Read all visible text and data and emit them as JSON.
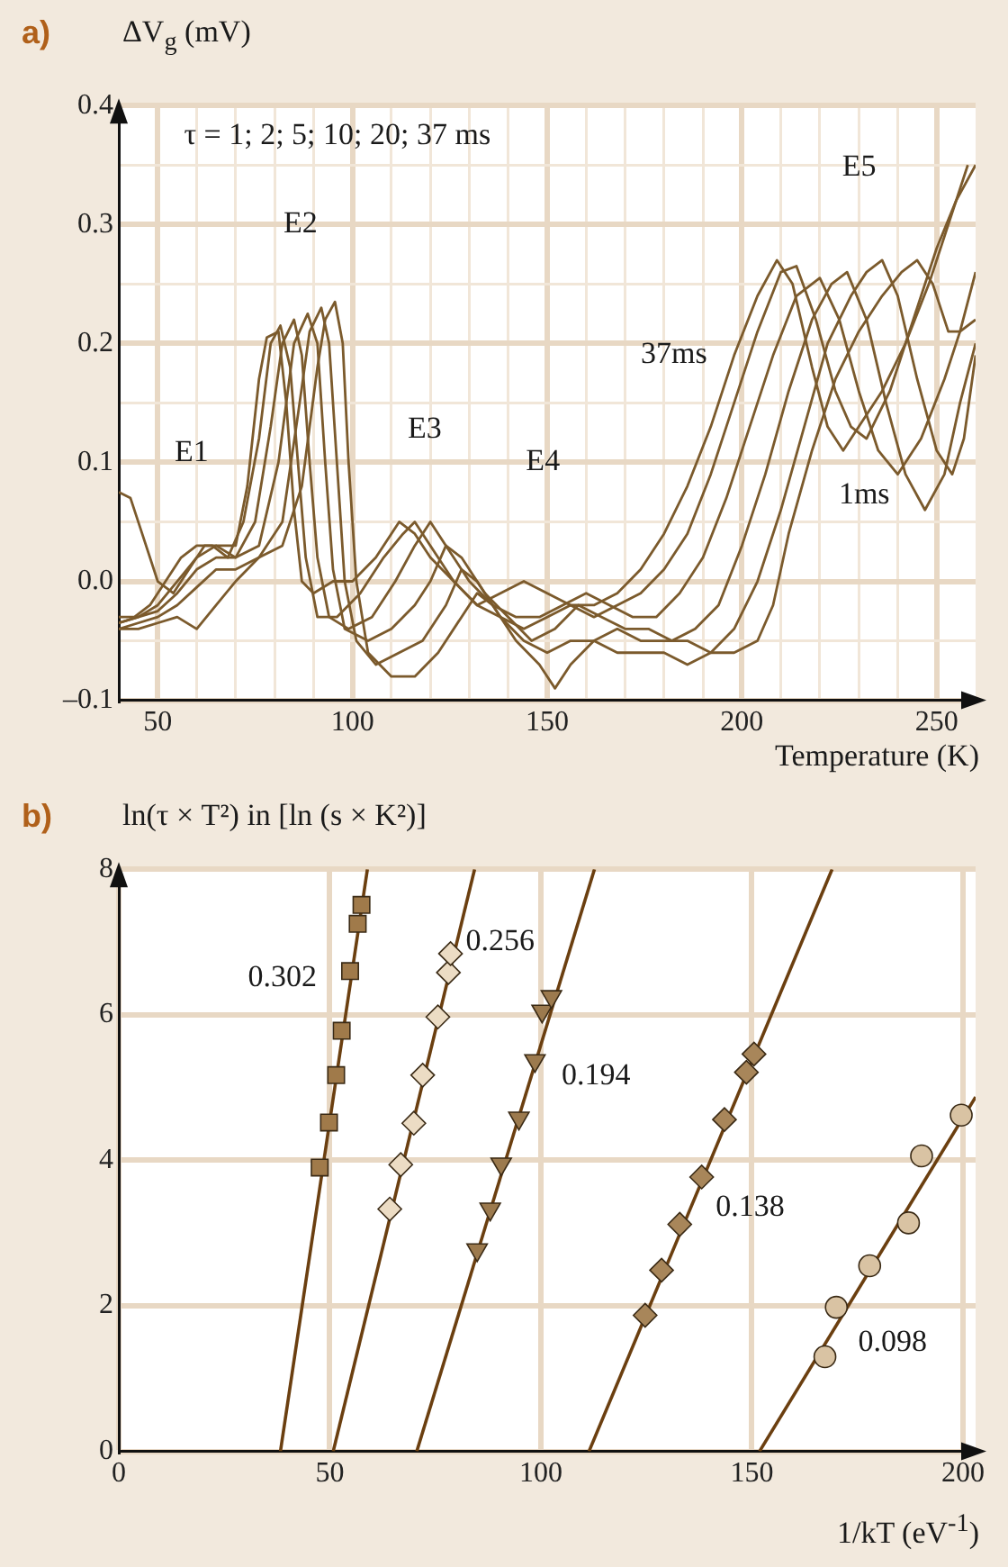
{
  "chart_data": [
    {
      "type": "line",
      "title": "a)",
      "ylabel": "ΔV$_{g}$ (mV)",
      "xlabel": "Temperature (K)",
      "marker": "none",
      "grid": true,
      "xlim": [
        40,
        260
      ],
      "ylim": [
        -0.1,
        0.4
      ],
      "xticks": [
        50,
        {
          "value": 60,
          "label": null
        },
        {
          "value": 70,
          "label": null
        },
        {
          "value": 80,
          "label": null
        },
        {
          "value": 90,
          "label": null
        },
        100,
        {
          "value": 110,
          "label": null
        },
        {
          "value": 120,
          "label": null
        },
        {
          "value": 130,
          "label": null
        },
        {
          "value": 140,
          "label": null
        },
        150,
        {
          "value": 160,
          "label": null
        },
        {
          "value": 170,
          "label": null
        },
        {
          "value": 180,
          "label": null
        },
        {
          "value": 190,
          "label": null
        },
        200,
        {
          "value": 210,
          "label": null
        },
        {
          "value": 220,
          "label": null
        },
        {
          "value": 230,
          "label": null
        },
        {
          "value": 240,
          "label": null
        },
        250
      ],
      "yticks": [
        {
          "value": -0.1,
          "label": "–0.1"
        },
        {
          "value": -0.05,
          "label": null
        },
        {
          "value": 0,
          "label": "0.0"
        },
        {
          "value": 0.05,
          "label": null
        },
        0.1,
        {
          "value": 0.15,
          "label": null
        },
        0.2,
        {
          "value": 0.25,
          "label": null
        },
        0.3,
        {
          "value": 0.35,
          "label": null
        },
        0.4
      ],
      "annotations": [
        "τ = 1; 2; 5; 10; 20; 37 ms",
        "E1",
        "E2",
        "E3",
        "E4",
        "E5",
        "37ms",
        "1ms"
      ],
      "series": [
        {
          "color": "#7b5a2c",
          "x": [
            40,
            43,
            46,
            50,
            54,
            58,
            62,
            66,
            70,
            73,
            76,
            78,
            81,
            83,
            85,
            87,
            90,
            95,
            100,
            106,
            112,
            116,
            120,
            126,
            132,
            138,
            144,
            150,
            156,
            162,
            168,
            174,
            180,
            186,
            192,
            198,
            204,
            209,
            213,
            218,
            222,
            226,
            230,
            236,
            242,
            248,
            253,
            258
          ],
          "values": [
            0.075,
            0.07,
            0.04,
            0.0,
            -0.01,
            0.01,
            0.03,
            0.03,
            0.03,
            0.08,
            0.17,
            0.205,
            0.21,
            0.15,
            0.06,
            0.0,
            -0.01,
            0.0,
            0.0,
            0.02,
            0.05,
            0.04,
            0.02,
            0.0,
            -0.02,
            -0.03,
            -0.04,
            -0.03,
            -0.02,
            -0.02,
            -0.01,
            0.01,
            0.04,
            0.08,
            0.13,
            0.19,
            0.24,
            0.27,
            0.25,
            0.18,
            0.13,
            0.11,
            0.13,
            0.16,
            0.2,
            0.25,
            0.3,
            0.35
          ]
        },
        {
          "color": "#7b5a2c",
          "x": [
            40,
            44,
            48,
            52,
            56,
            60,
            64,
            68,
            72,
            76,
            79,
            81.5,
            84,
            86,
            88,
            91,
            96,
            102,
            108,
            113,
            116,
            120,
            126,
            132,
            138,
            144,
            150,
            156,
            162,
            168,
            174,
            180,
            186,
            192,
            198,
            204,
            210,
            214,
            219,
            224,
            228,
            232,
            238,
            244,
            250,
            255,
            260
          ],
          "values": [
            -0.03,
            -0.03,
            -0.02,
            0.0,
            0.02,
            0.03,
            0.03,
            0.02,
            0.05,
            0.12,
            0.2,
            0.215,
            0.18,
            0.1,
            0.02,
            -0.03,
            -0.03,
            -0.01,
            0.02,
            0.04,
            0.05,
            0.03,
            0.0,
            -0.02,
            -0.01,
            0.0,
            -0.01,
            -0.02,
            -0.03,
            -0.02,
            -0.01,
            0.01,
            0.04,
            0.09,
            0.15,
            0.21,
            0.26,
            0.265,
            0.22,
            0.16,
            0.13,
            0.12,
            0.16,
            0.22,
            0.28,
            0.32,
            0.35
          ]
        },
        {
          "color": "#7b5a2c",
          "x": [
            40,
            45,
            50,
            55,
            60,
            65,
            70,
            75,
            79,
            82,
            85,
            87,
            89,
            91,
            94,
            99,
            105,
            111,
            116,
            120,
            124,
            130,
            136,
            142,
            148,
            154,
            160,
            166,
            172,
            178,
            184,
            190,
            196,
            202,
            208,
            214,
            220,
            225,
            230,
            235,
            240,
            246,
            252,
            256,
            260
          ],
          "values": [
            -0.035,
            -0.03,
            -0.02,
            0.0,
            0.02,
            0.03,
            0.02,
            0.05,
            0.13,
            0.2,
            0.22,
            0.19,
            0.1,
            0.02,
            -0.03,
            -0.04,
            -0.03,
            0.0,
            0.03,
            0.05,
            0.03,
            0.0,
            -0.02,
            -0.03,
            -0.03,
            -0.02,
            -0.01,
            -0.02,
            -0.03,
            -0.03,
            -0.01,
            0.02,
            0.07,
            0.13,
            0.19,
            0.24,
            0.255,
            0.22,
            0.16,
            0.11,
            0.09,
            0.12,
            0.17,
            0.21,
            0.22
          ]
        },
        {
          "color": "#7b5a2c",
          "x": [
            40,
            45,
            50,
            55,
            60,
            65,
            70,
            76,
            81,
            85,
            88.5,
            91,
            93,
            95,
            98,
            104,
            110,
            116,
            120,
            124,
            128,
            134,
            140,
            146,
            152,
            158,
            164,
            170,
            176,
            182,
            188,
            194,
            200,
            206,
            212,
            218,
            223,
            227,
            232,
            237,
            242,
            247,
            252,
            256,
            260
          ],
          "values": [
            -0.035,
            -0.03,
            -0.025,
            -0.01,
            0.01,
            0.02,
            0.02,
            0.03,
            0.1,
            0.2,
            0.225,
            0.2,
            0.1,
            0.01,
            -0.04,
            -0.05,
            -0.04,
            -0.02,
            0.0,
            0.03,
            0.02,
            -0.01,
            -0.03,
            -0.05,
            -0.04,
            -0.02,
            -0.03,
            -0.04,
            -0.04,
            -0.05,
            -0.04,
            -0.02,
            0.03,
            0.09,
            0.16,
            0.22,
            0.25,
            0.26,
            0.22,
            0.15,
            0.09,
            0.06,
            0.09,
            0.15,
            0.2
          ]
        },
        {
          "color": "#7b5a2c",
          "x": [
            40,
            45,
            50,
            55,
            60,
            65,
            70,
            76,
            82,
            86,
            89,
            92,
            94,
            96,
            98,
            101,
            106,
            112,
            118,
            124,
            128,
            132,
            138,
            144,
            150,
            156,
            162,
            168,
            174,
            180,
            186,
            192,
            198,
            204,
            210,
            216,
            222,
            228,
            232,
            236,
            240,
            245,
            250,
            254,
            257,
            260
          ],
          "values": [
            -0.04,
            -0.035,
            -0.03,
            -0.02,
            -0.005,
            0.01,
            0.01,
            0.02,
            0.05,
            0.14,
            0.21,
            0.23,
            0.2,
            0.1,
            0.0,
            -0.05,
            -0.07,
            -0.06,
            -0.05,
            -0.02,
            0.01,
            0.0,
            -0.03,
            -0.05,
            -0.06,
            -0.05,
            -0.05,
            -0.06,
            -0.06,
            -0.06,
            -0.07,
            -0.06,
            -0.04,
            0.0,
            0.06,
            0.13,
            0.2,
            0.24,
            0.26,
            0.27,
            0.24,
            0.17,
            0.11,
            0.09,
            0.12,
            0.19
          ]
        },
        {
          "color": "#7b5a2c",
          "x": [
            40,
            45,
            50,
            55,
            60,
            65,
            70,
            76,
            82,
            87,
            91,
            93,
            95.5,
            97.5,
            99,
            101,
            104,
            110,
            116,
            122,
            128,
            132,
            136,
            142,
            148,
            152,
            156,
            162,
            168,
            174,
            180,
            186,
            192,
            198,
            204,
            208,
            212,
            218,
            224,
            230,
            236,
            241,
            245,
            249,
            253,
            256,
            260
          ],
          "values": [
            -0.04,
            -0.04,
            -0.035,
            -0.03,
            -0.04,
            -0.02,
            0.0,
            0.02,
            0.03,
            0.08,
            0.18,
            0.22,
            0.235,
            0.2,
            0.1,
            0.0,
            -0.06,
            -0.08,
            -0.08,
            -0.06,
            -0.03,
            -0.01,
            -0.02,
            -0.05,
            -0.07,
            -0.09,
            -0.07,
            -0.05,
            -0.04,
            -0.05,
            -0.05,
            -0.05,
            -0.06,
            -0.06,
            -0.05,
            -0.02,
            0.04,
            0.11,
            0.17,
            0.21,
            0.24,
            0.26,
            0.27,
            0.25,
            0.21,
            0.21,
            0.26
          ]
        }
      ]
    },
    {
      "type": "scatter",
      "title": "b)",
      "ylabel": "ln(τ × T²) in [ln (s × K²)]",
      "xlabel": "1/kT (eV$^{-1}$)",
      "grid": true,
      "xlim": [
        0,
        203
      ],
      "ylim": [
        0,
        8
      ],
      "xticks": [
        0,
        50,
        100,
        150,
        200
      ],
      "yticks": [
        0,
        2,
        4,
        6,
        8
      ],
      "annotations": [
        "0.302",
        "0.256",
        "0.194",
        "0.138",
        "0.098"
      ],
      "series": [
        {
          "type": "line",
          "marker": "none",
          "color": "#6b3f10",
          "x": [
            38.3,
            58.9
          ],
          "values": [
            0,
            8
          ]
        },
        {
          "type": "line",
          "marker": "none",
          "color": "#6b3f10",
          "x": [
            50.8,
            84.3
          ],
          "values": [
            0,
            8
          ]
        },
        {
          "type": "line",
          "marker": "none",
          "color": "#6b3f10",
          "x": [
            70.6,
            112.7
          ],
          "values": [
            0,
            8
          ]
        },
        {
          "type": "line",
          "marker": "none",
          "color": "#6b3f10",
          "x": [
            111.4,
            169
          ],
          "values": [
            0,
            8
          ]
        },
        {
          "type": "line",
          "marker": "none",
          "color": "#6b3f10",
          "x": [
            151.8,
            203
          ],
          "values": [
            0,
            4.87
          ]
        },
        {
          "type": "scatter",
          "marker": "square",
          "color": "#a07a4a",
          "x": [
            47.6,
            49.8,
            51.5,
            52.8,
            54.8,
            56.6,
            57.5
          ],
          "values": [
            3.9,
            4.52,
            5.17,
            5.78,
            6.6,
            7.25,
            7.51
          ]
        },
        {
          "type": "scatter",
          "marker": "diamond",
          "color": "#ecdcc4",
          "x": [
            64.2,
            66.8,
            69.9,
            72,
            75.6,
            78.1,
            78.6
          ],
          "values": [
            3.33,
            3.94,
            4.51,
            5.17,
            5.97,
            6.58,
            6.84
          ]
        },
        {
          "type": "scatter",
          "marker": "triangle",
          "color": "#9c7a4e",
          "x": [
            84.9,
            88,
            90.6,
            94.8,
            98.6,
            100.3,
            102.5
          ],
          "values": [
            2.77,
            3.33,
            3.95,
            4.58,
            5.37,
            6.05,
            6.25
          ]
        },
        {
          "type": "scatter",
          "marker": "diamond",
          "color": "#a8865a",
          "x": [
            124.7,
            128.6,
            132.9,
            138.1,
            143.5,
            148.7,
            150.5
          ],
          "values": [
            1.87,
            2.49,
            3.12,
            3.77,
            4.56,
            5.21,
            5.46
          ]
        },
        {
          "type": "scatter",
          "marker": "circle",
          "color": "#d9c3a3",
          "x": [
            167.3,
            170,
            177.9,
            187.1,
            190.2,
            199.6
          ],
          "values": [
            1.3,
            1.98,
            2.55,
            3.14,
            4.06,
            4.62
          ]
        }
      ]
    }
  ]
}
